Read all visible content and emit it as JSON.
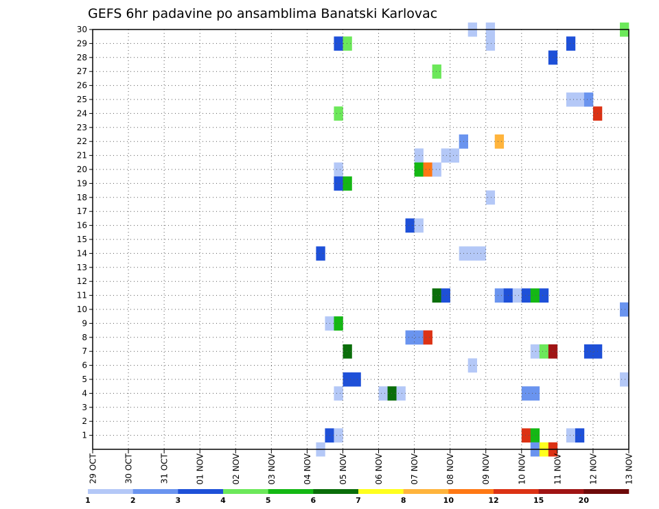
{
  "chart_data": {
    "type": "heatmap",
    "title": "GEFS 6hr padavine po ansamblima Banatski Karlovac",
    "x_tick_labels": [
      "29 OCT",
      "30 OCT",
      "31 OCT",
      "01 NOV",
      "02 NOV",
      "03 NOV",
      "04 NOV",
      "05 NOV",
      "06 NOV",
      "07 NOV",
      "08 NOV",
      "09 NOV",
      "10 NOV",
      "11 NOV",
      "12 NOV",
      "13 NOV"
    ],
    "y_tick_labels": [
      "1",
      "2",
      "3",
      "4",
      "5",
      "6",
      "7",
      "8",
      "9",
      "10",
      "11",
      "12",
      "13",
      "14",
      "15",
      "16",
      "17",
      "18",
      "19",
      "20",
      "21",
      "22",
      "23",
      "24",
      "25",
      "26",
      "27",
      "28",
      "29",
      "30"
    ],
    "xlim_days": [
      0,
      15
    ],
    "ylim_members": [
      0,
      30
    ],
    "step_days": 0.25,
    "grid": true,
    "legend": {
      "position": "bottom",
      "colors": [
        "#b4c8f7",
        "#6a94ef",
        "#1e50d8",
        "#6ce85a",
        "#14b814",
        "#0a6e0a",
        "#ffff1e",
        "#ffb43c",
        "#ff7814",
        "#dc3214",
        "#a01414",
        "#6e0a0a"
      ],
      "tick_labels": [
        "1",
        "2",
        "3",
        "4",
        "5",
        "6",
        "7",
        "8",
        "10",
        "12",
        "15",
        "20"
      ]
    },
    "cells": [
      {
        "member": 30,
        "day": 10.5,
        "bin": 1
      },
      {
        "member": 30,
        "day": 11.0,
        "bin": 1
      },
      {
        "member": 30,
        "day": 14.75,
        "bin": 4
      },
      {
        "member": 29,
        "day": 6.75,
        "bin": 3
      },
      {
        "member": 29,
        "day": 7.0,
        "bin": 4
      },
      {
        "member": 29,
        "day": 11.0,
        "bin": 1
      },
      {
        "member": 29,
        "day": 13.25,
        "bin": 3
      },
      {
        "member": 28,
        "day": 12.75,
        "bin": 3
      },
      {
        "member": 27,
        "day": 9.5,
        "bin": 4
      },
      {
        "member": 25,
        "day": 13.25,
        "bin": 1
      },
      {
        "member": 25,
        "day": 13.5,
        "bin": 1
      },
      {
        "member": 25,
        "day": 13.75,
        "bin": 2
      },
      {
        "member": 24,
        "day": 6.75,
        "bin": 4
      },
      {
        "member": 24,
        "day": 14.0,
        "bin": 10
      },
      {
        "member": 22,
        "day": 10.25,
        "bin": 2
      },
      {
        "member": 22,
        "day": 11.25,
        "bin": 8
      },
      {
        "member": 21,
        "day": 9.0,
        "bin": 1
      },
      {
        "member": 21,
        "day": 9.75,
        "bin": 1
      },
      {
        "member": 21,
        "day": 10.0,
        "bin": 1
      },
      {
        "member": 20,
        "day": 6.75,
        "bin": 1
      },
      {
        "member": 20,
        "day": 9.0,
        "bin": 5
      },
      {
        "member": 20,
        "day": 9.25,
        "bin": 9
      },
      {
        "member": 20,
        "day": 9.5,
        "bin": 1
      },
      {
        "member": 19,
        "day": 6.75,
        "bin": 3
      },
      {
        "member": 19,
        "day": 7.0,
        "bin": 5
      },
      {
        "member": 18,
        "day": 11.0,
        "bin": 1
      },
      {
        "member": 16,
        "day": 8.75,
        "bin": 3
      },
      {
        "member": 16,
        "day": 9.0,
        "bin": 1
      },
      {
        "member": 14,
        "day": 6.25,
        "bin": 3
      },
      {
        "member": 14,
        "day": 10.25,
        "bin": 1
      },
      {
        "member": 14,
        "day": 10.5,
        "bin": 1
      },
      {
        "member": 14,
        "day": 10.75,
        "bin": 1
      },
      {
        "member": 11,
        "day": 9.5,
        "bin": 6
      },
      {
        "member": 11,
        "day": 9.75,
        "bin": 3
      },
      {
        "member": 11,
        "day": 11.25,
        "bin": 2
      },
      {
        "member": 11,
        "day": 11.5,
        "bin": 3
      },
      {
        "member": 11,
        "day": 11.75,
        "bin": 1
      },
      {
        "member": 11,
        "day": 12.0,
        "bin": 3
      },
      {
        "member": 11,
        "day": 12.25,
        "bin": 5
      },
      {
        "member": 11,
        "day": 12.5,
        "bin": 3
      },
      {
        "member": 10,
        "day": 14.75,
        "bin": 2
      },
      {
        "member": 9,
        "day": 6.5,
        "bin": 1
      },
      {
        "member": 9,
        "day": 6.75,
        "bin": 5
      },
      {
        "member": 8,
        "day": 8.75,
        "bin": 2
      },
      {
        "member": 8,
        "day": 9.0,
        "bin": 2
      },
      {
        "member": 8,
        "day": 9.25,
        "bin": 10
      },
      {
        "member": 7,
        "day": 7.0,
        "bin": 6
      },
      {
        "member": 7,
        "day": 12.25,
        "bin": 1
      },
      {
        "member": 7,
        "day": 12.5,
        "bin": 4
      },
      {
        "member": 7,
        "day": 12.75,
        "bin": 11
      },
      {
        "member": 7,
        "day": 13.75,
        "bin": 3
      },
      {
        "member": 7,
        "day": 14.0,
        "bin": 3
      },
      {
        "member": 6,
        "day": 10.5,
        "bin": 1
      },
      {
        "member": 5,
        "day": 7.0,
        "bin": 3
      },
      {
        "member": 5,
        "day": 7.25,
        "bin": 3
      },
      {
        "member": 5,
        "day": 14.75,
        "bin": 1
      },
      {
        "member": 4,
        "day": 6.75,
        "bin": 1
      },
      {
        "member": 4,
        "day": 8.0,
        "bin": 1
      },
      {
        "member": 4,
        "day": 8.25,
        "bin": 6
      },
      {
        "member": 4,
        "day": 8.5,
        "bin": 1
      },
      {
        "member": 4,
        "day": 12.0,
        "bin": 2
      },
      {
        "member": 4,
        "day": 12.25,
        "bin": 2
      },
      {
        "member": 1,
        "day": 6.5,
        "bin": 3
      },
      {
        "member": 1,
        "day": 6.75,
        "bin": 1
      },
      {
        "member": 1,
        "day": 12.0,
        "bin": 10
      },
      {
        "member": 1,
        "day": 12.25,
        "bin": 5
      },
      {
        "member": 1,
        "day": 13.25,
        "bin": 1
      },
      {
        "member": 1,
        "day": 13.5,
        "bin": 3
      },
      {
        "member": 0,
        "day": 6.25,
        "bin": 1
      },
      {
        "member": 0,
        "day": 12.25,
        "bin": 2
      },
      {
        "member": 0,
        "day": 12.5,
        "bin": 7
      },
      {
        "member": 0,
        "day": 12.75,
        "bin": 10
      }
    ]
  }
}
